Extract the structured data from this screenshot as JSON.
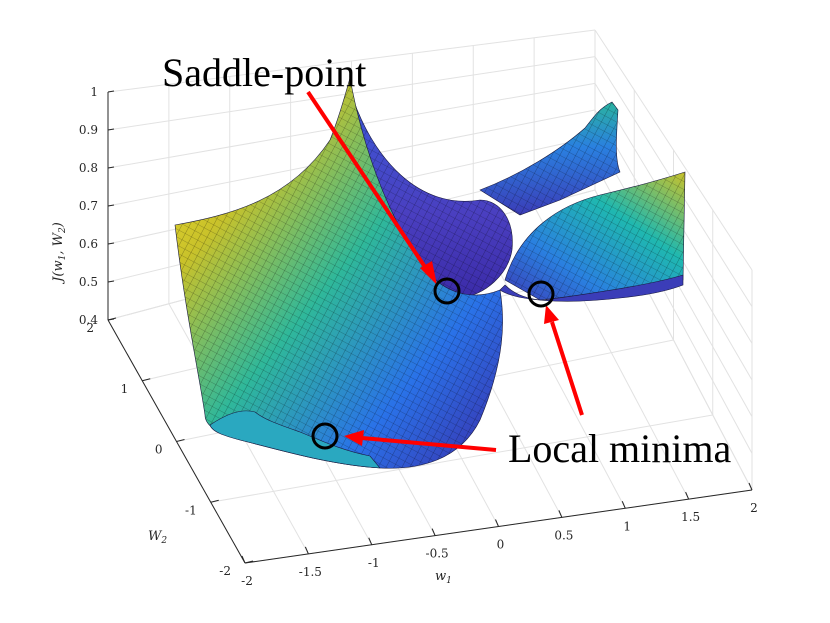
{
  "chart_data": {
    "type": "surface",
    "title": "",
    "xlabel": "w",
    "xlabel_sub": "1",
    "ylabel": "W",
    "ylabel_sub": "2",
    "zlabel": "J(w1, W2)",
    "zlabel_parts": {
      "j": "J(",
      "w": "w",
      "w_sub": "1",
      "sep": ", ",
      "W": "W",
      "W_sub": "2",
      "close": ")"
    },
    "x_ticks": [
      "-2",
      "-1.5",
      "-1",
      "-0.5",
      "0",
      "0.5",
      "1",
      "1.5",
      "2"
    ],
    "y_ticks": [
      "-2",
      "-1",
      "0",
      "1",
      "2"
    ],
    "z_ticks": [
      "0.4",
      "0.5",
      "0.6",
      "0.7",
      "0.8",
      "0.9",
      "1"
    ],
    "xlim": [
      -2,
      2
    ],
    "ylim": [
      -2,
      2
    ],
    "zlim": [
      0.4,
      1
    ],
    "grid": true,
    "colormap": [
      "#3e26a8",
      "#2d69f9",
      "#13b3d2",
      "#3bc581",
      "#c7c029",
      "#f9d21d",
      "#f9fb14"
    ],
    "annotations": [
      {
        "label": "Saddle-point",
        "marker": {
          "w1": -0.25,
          "W2": 0.75,
          "J": 0.42
        }
      },
      {
        "label": "Local minima",
        "markers": [
          {
            "w1": 0.55,
            "W2": 1.6,
            "J": 0.44
          },
          {
            "w1": -1.5,
            "W2": 0.35,
            "J": 0.47
          }
        ]
      }
    ],
    "annotation_color": "#ff0000"
  }
}
